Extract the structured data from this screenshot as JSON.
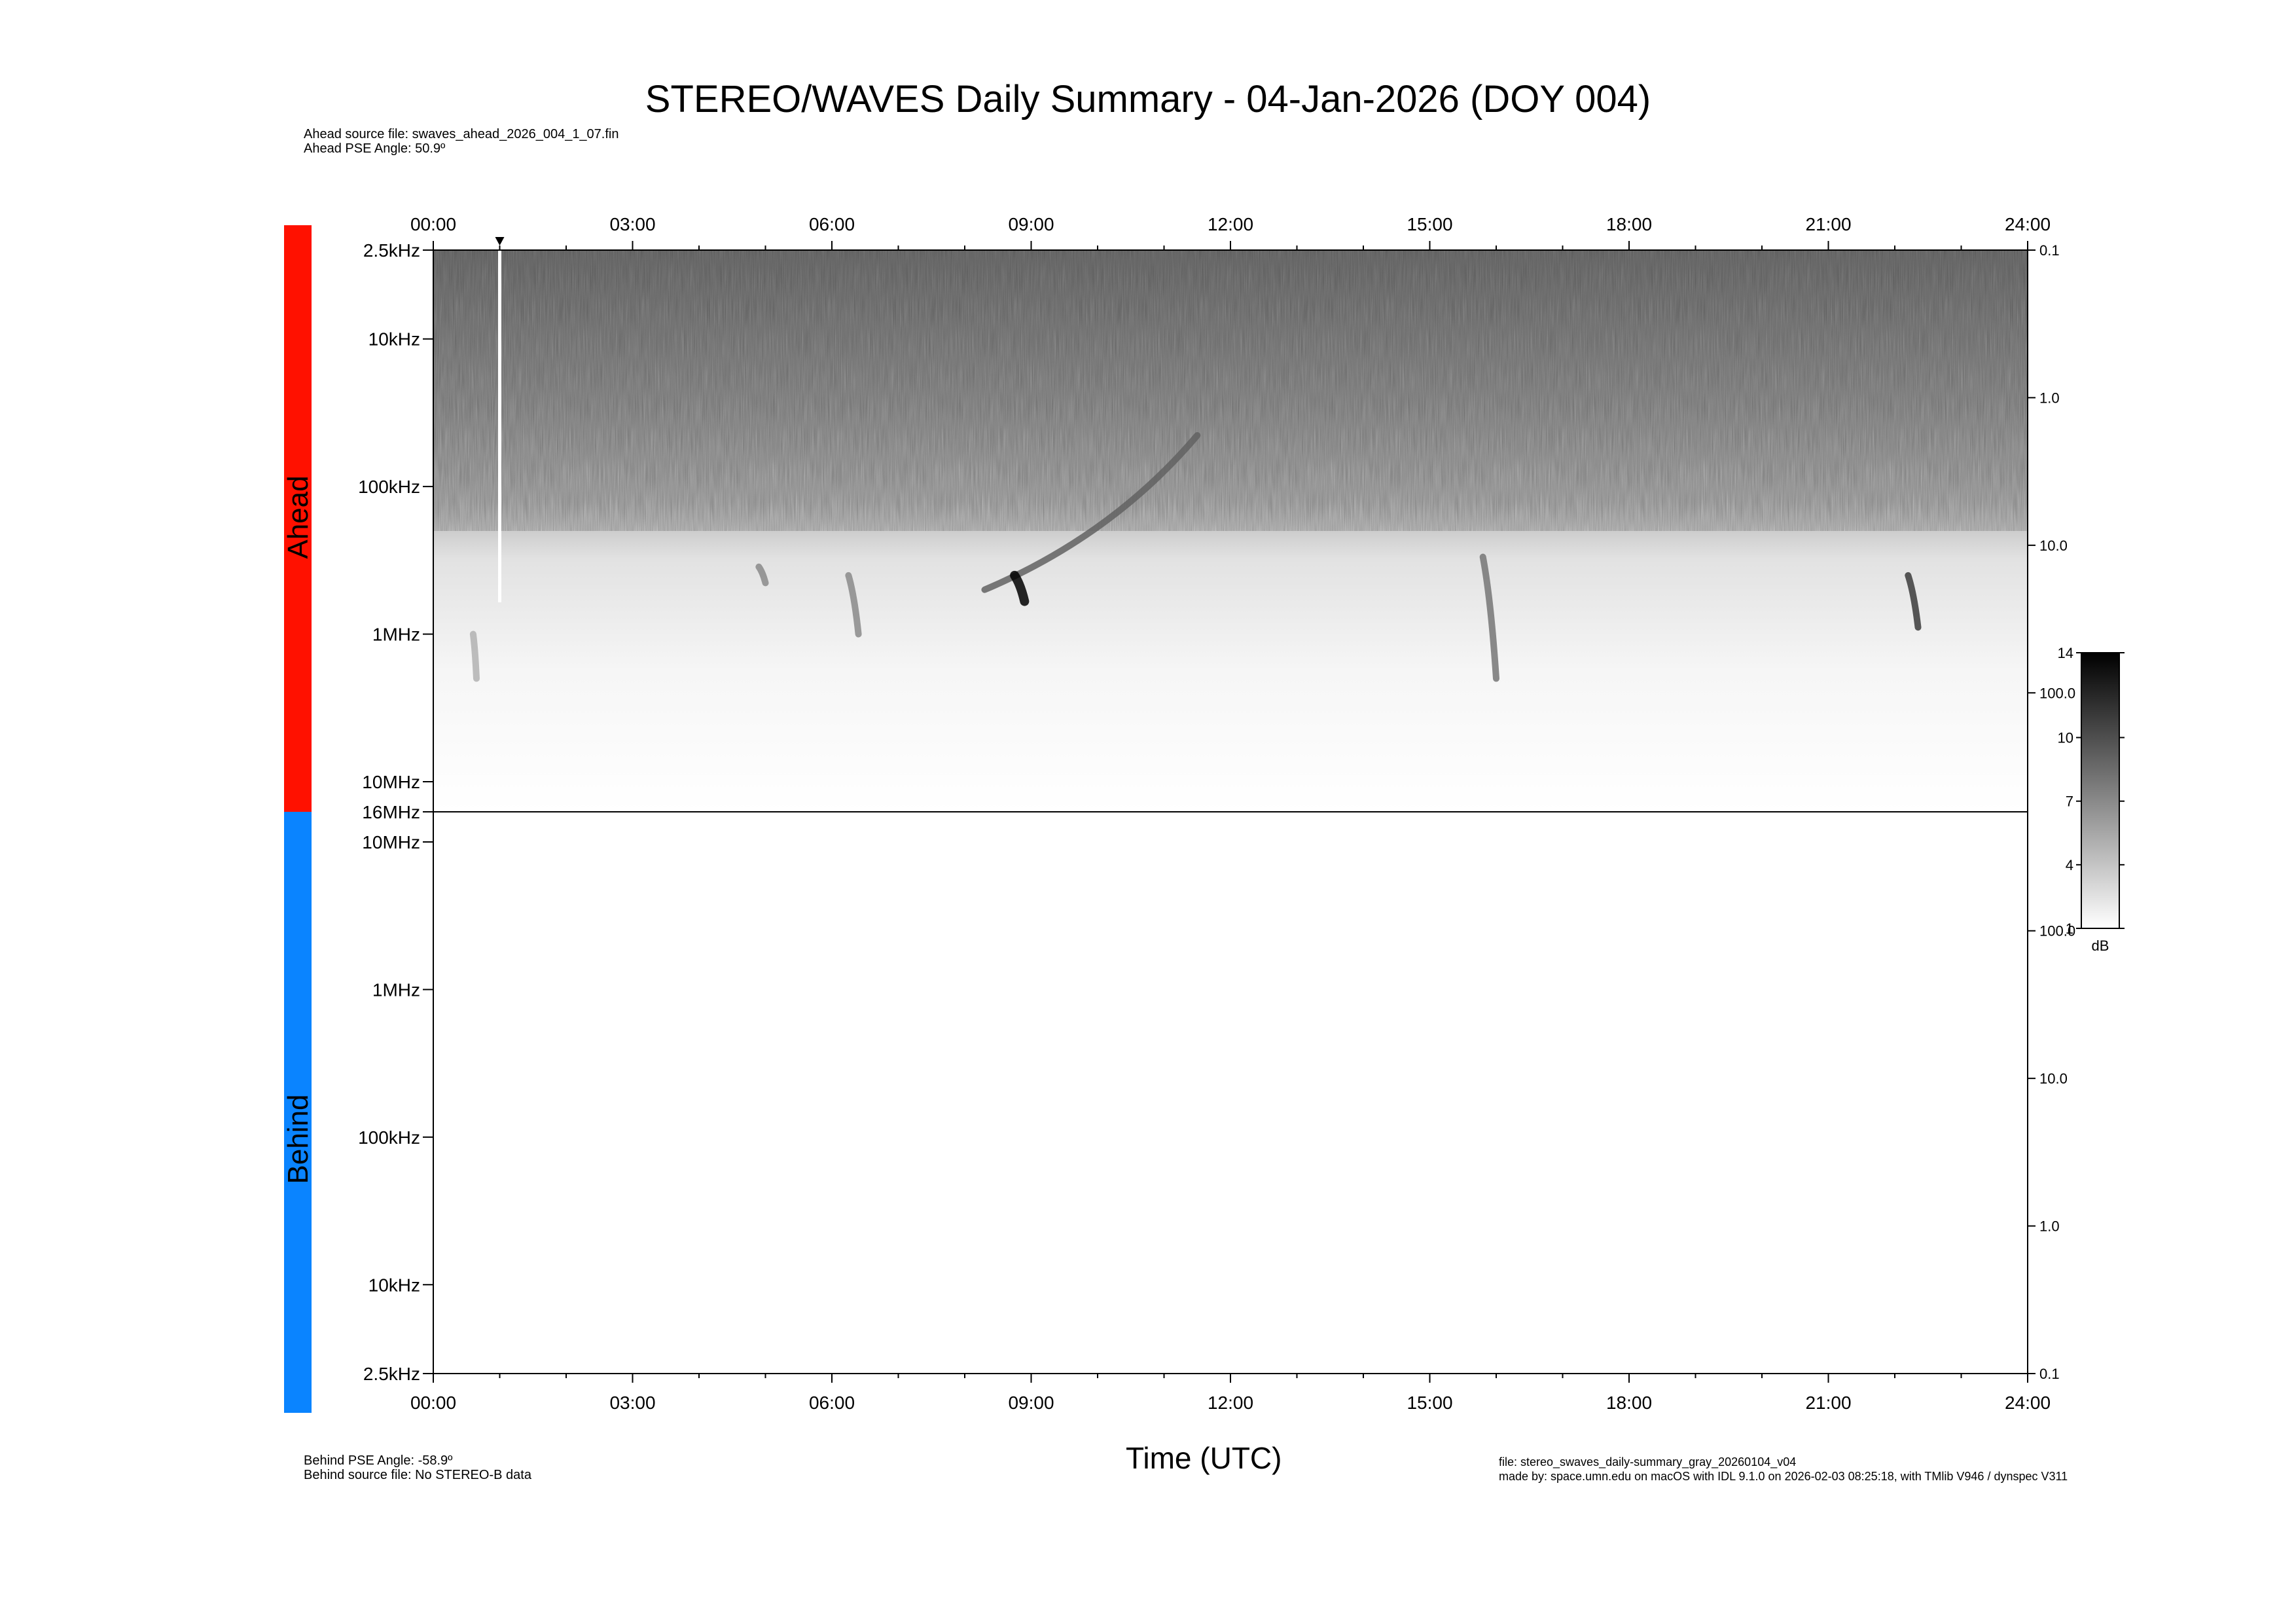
{
  "title": "STEREO/WAVES Daily Summary - 04-Jan-2026 (DOY 004)",
  "ahead_meta": {
    "source_file": "Ahead source file: swaves_ahead_2026_004_1_07.fin",
    "pse_angle": "Ahead PSE Angle:   50.9º"
  },
  "behind_meta": {
    "pse_angle": "Behind PSE Angle:  -58.9º",
    "source_file": "Behind source file: No STEREO-B data"
  },
  "footer": {
    "file": "file: stereo_swaves_daily-summary_gray_20260104_v04",
    "made_by": "made by: space.umn.edu on macOS with IDL 9.1.0 on 2026-02-03 08:25:18, with TMlib V946 / dynspec V311"
  },
  "chart_data": {
    "type": "heatmap",
    "xlabel": "Time (UTC)",
    "x_range_hours": [
      0,
      24
    ],
    "x_tick_labels": [
      "00:00",
      "03:00",
      "06:00",
      "09:00",
      "12:00",
      "15:00",
      "18:00",
      "21:00",
      "24:00"
    ],
    "colormap": "gray",
    "colorbar": {
      "label": "dB",
      "min": 1,
      "max": 14,
      "tick_labels": [
        "14",
        "10",
        "7",
        "4",
        "1"
      ],
      "tick_values": [
        14,
        10,
        7,
        4,
        1
      ]
    },
    "marker_time_hours": 1.0,
    "panels": [
      {
        "name": "Ahead",
        "color": "#ff1100",
        "y_scale": "log",
        "y_range_hz": [
          2500,
          16000000
        ],
        "y_tick_labels": [
          "2.5kHz",
          "10kHz",
          "100kHz",
          "1MHz",
          "10MHz",
          "16MHz"
        ],
        "y_tick_values_hz": [
          2500,
          10000,
          100000,
          1000000,
          10000000,
          16000000
        ],
        "right_tick_labels": [
          "0.1",
          "1.0",
          "10.0",
          "100.0"
        ],
        "has_data": true,
        "bursts": [
          {
            "time_start_h": 8.3,
            "time_end_h": 11.5,
            "freq_start_hz": 500000,
            "freq_end_hz": 45000,
            "intensity_db": 9
          },
          {
            "time_start_h": 8.75,
            "time_end_h": 8.9,
            "freq_start_hz": 400000,
            "freq_end_hz": 600000,
            "intensity_db": 14
          },
          {
            "time_start_h": 15.8,
            "time_end_h": 16.0,
            "freq_start_hz": 300000,
            "freq_end_hz": 2000000,
            "intensity_db": 8
          },
          {
            "time_start_h": 22.2,
            "time_end_h": 22.35,
            "freq_start_hz": 400000,
            "freq_end_hz": 900000,
            "intensity_db": 11
          },
          {
            "time_start_h": 6.25,
            "time_end_h": 6.4,
            "freq_start_hz": 400000,
            "freq_end_hz": 1000000,
            "intensity_db": 7
          },
          {
            "time_start_h": 4.9,
            "time_end_h": 5.0,
            "freq_start_hz": 350000,
            "freq_end_hz": 450000,
            "intensity_db": 7
          },
          {
            "time_start_h": 0.6,
            "time_end_h": 0.65,
            "freq_start_hz": 1000000,
            "freq_end_hz": 2000000,
            "intensity_db": 5
          }
        ]
      },
      {
        "name": "Behind",
        "color": "#0a84ff",
        "y_scale": "log",
        "y_range_hz": [
          2500,
          16000000
        ],
        "y_tick_labels": [
          "10MHz",
          "1MHz",
          "100kHz",
          "10kHz",
          "2.5kHz"
        ],
        "y_tick_values_hz": [
          10000000,
          1000000,
          100000,
          10000,
          2500
        ],
        "right_tick_labels": [
          "100.0",
          "10.0",
          "1.0",
          "0.1"
        ],
        "has_data": false
      }
    ]
  }
}
